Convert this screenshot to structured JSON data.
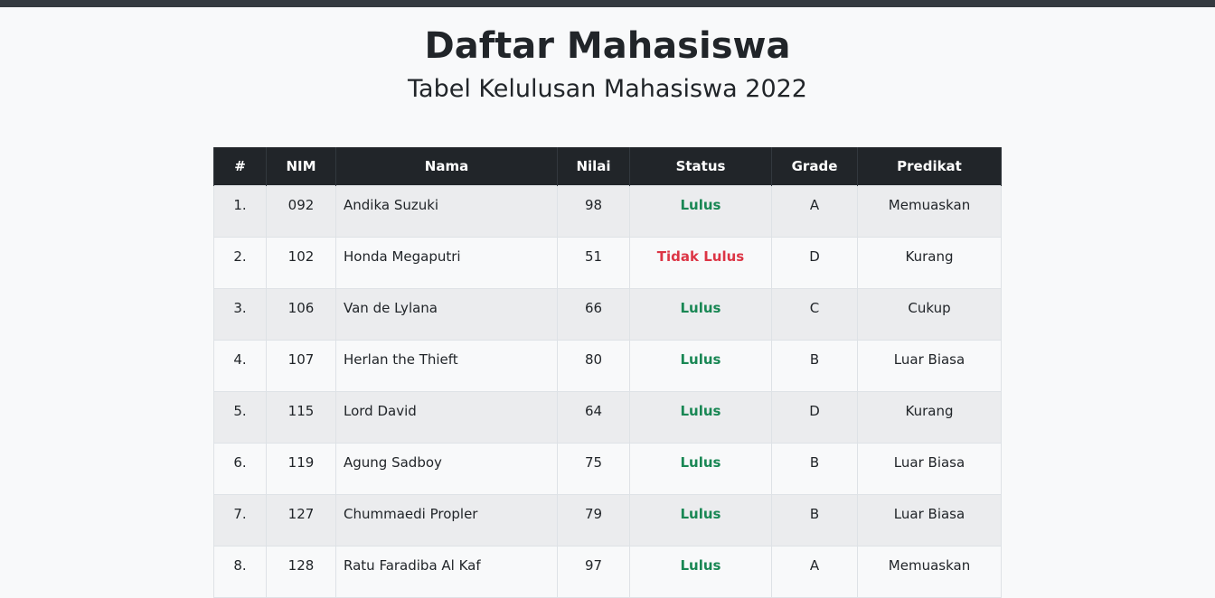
{
  "page": {
    "title": "Daftar Mahasiswa",
    "subtitle": "Tabel Kelulusan Mahasiswa 2022"
  },
  "colors": {
    "topbar": "#343a40",
    "header_bg": "#212529",
    "pass": "#198754",
    "fail": "#dc3545"
  },
  "table": {
    "headers": [
      "#",
      "NIM",
      "Nama",
      "Nilai",
      "Status",
      "Grade",
      "Predikat"
    ],
    "rows": [
      {
        "no": "1.",
        "nim": "092",
        "nama": "Andika Suzuki",
        "nilai": "98",
        "status": "Lulus",
        "passed": true,
        "grade": "A",
        "predikat": "Memuaskan"
      },
      {
        "no": "2.",
        "nim": "102",
        "nama": "Honda Megaputri",
        "nilai": "51",
        "status": "Tidak Lulus",
        "passed": false,
        "grade": "D",
        "predikat": "Kurang"
      },
      {
        "no": "3.",
        "nim": "106",
        "nama": "Van de Lylana",
        "nilai": "66",
        "status": "Lulus",
        "passed": true,
        "grade": "C",
        "predikat": "Cukup"
      },
      {
        "no": "4.",
        "nim": "107",
        "nama": "Herlan the Thieft",
        "nilai": "80",
        "status": "Lulus",
        "passed": true,
        "grade": "B",
        "predikat": "Luar Biasa"
      },
      {
        "no": "5.",
        "nim": "115",
        "nama": "Lord David",
        "nilai": "64",
        "status": "Lulus",
        "passed": true,
        "grade": "D",
        "predikat": "Kurang"
      },
      {
        "no": "6.",
        "nim": "119",
        "nama": "Agung Sadboy",
        "nilai": "75",
        "status": "Lulus",
        "passed": true,
        "grade": "B",
        "predikat": "Luar Biasa"
      },
      {
        "no": "7.",
        "nim": "127",
        "nama": "Chummaedi Propler",
        "nilai": "79",
        "status": "Lulus",
        "passed": true,
        "grade": "B",
        "predikat": "Luar Biasa"
      },
      {
        "no": "8.",
        "nim": "128",
        "nama": "Ratu Faradiba Al Kaf",
        "nilai": "97",
        "status": "Lulus",
        "passed": true,
        "grade": "A",
        "predikat": "Memuaskan"
      }
    ]
  }
}
